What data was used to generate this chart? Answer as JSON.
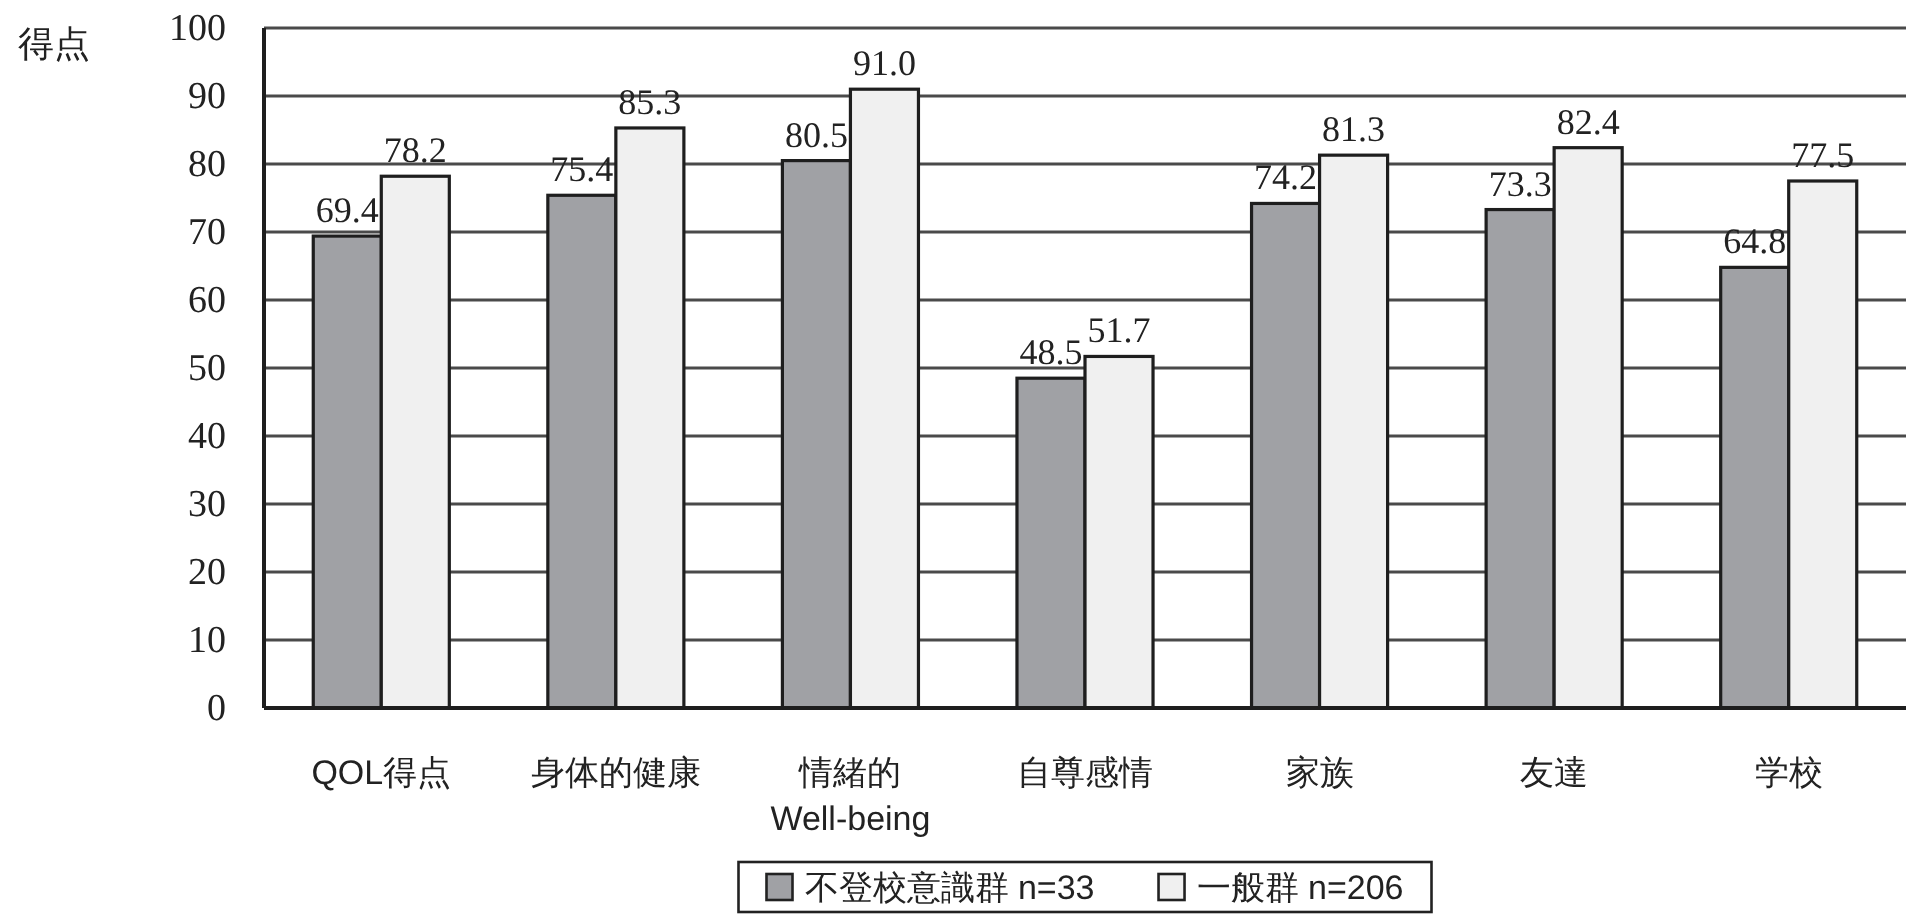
{
  "chart_data": {
    "type": "bar",
    "ylabel": "得点",
    "categories": [
      "QOL得点",
      "身体的健康",
      "情緒的\nWell-being",
      "自尊感情",
      "家族",
      "友達",
      "学校"
    ],
    "series": [
      {
        "name": "不登校意識群 n=33",
        "color": "#a0a1a5",
        "values": [
          69.4,
          75.4,
          80.5,
          48.5,
          74.2,
          73.3,
          64.8
        ],
        "value_labels": [
          "69.4",
          "75.4",
          "80.5",
          "48.5",
          "74.2",
          "73.3",
          "64.8"
        ]
      },
      {
        "name": "一般群 n=206",
        "color": "#f0f0f0",
        "values": [
          78.2,
          85.3,
          91.0,
          51.7,
          81.3,
          82.4,
          77.5
        ],
        "value_labels": [
          "78.2",
          "85.3",
          "91.0",
          "51.7",
          "81.3",
          "82.4",
          "77.5"
        ]
      }
    ],
    "ylim": [
      0,
      100
    ],
    "yticks": [
      0,
      10,
      20,
      30,
      40,
      50,
      60,
      70,
      80,
      90,
      100
    ],
    "grid": "y",
    "legend": "bottom"
  }
}
